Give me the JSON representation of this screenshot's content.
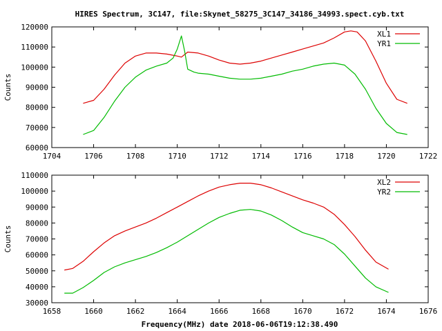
{
  "title": "HIRES Spectrum, 3C147, file:Skynet_58275_3C147_34186_34993.spect.cyb.txt",
  "xlabel": "Frequency(MHz) date 2018-06-06T19:12:38.490",
  "chart_data": [
    {
      "type": "line",
      "ylabel": "Counts",
      "xlim": [
        1704,
        1722
      ],
      "ylim": [
        60000,
        120000
      ],
      "xticks": [
        1704,
        1706,
        1708,
        1710,
        1712,
        1714,
        1716,
        1718,
        1720,
        1722
      ],
      "yticks": [
        60000,
        70000,
        80000,
        90000,
        100000,
        110000,
        120000
      ],
      "legend_position": "top-right",
      "series": [
        {
          "name": "XL1",
          "color": "#dd0000",
          "x": [
            1705.5,
            1706.0,
            1706.5,
            1707.0,
            1707.5,
            1708.0,
            1708.5,
            1709.0,
            1709.5,
            1710.0,
            1710.2,
            1710.5,
            1711.0,
            1711.5,
            1712.0,
            1712.5,
            1713.0,
            1713.5,
            1714.0,
            1714.5,
            1715.0,
            1715.5,
            1716.0,
            1716.5,
            1717.0,
            1717.5,
            1718.0,
            1718.3,
            1718.6,
            1719.0,
            1719.5,
            1720.0,
            1720.5,
            1721.0
          ],
          "y": [
            82000,
            83500,
            89000,
            96000,
            102000,
            105500,
            107000,
            107000,
            106500,
            105500,
            105000,
            107500,
            107000,
            105500,
            103500,
            102000,
            101500,
            102000,
            103000,
            104500,
            106000,
            107500,
            109000,
            110500,
            112000,
            114500,
            117500,
            118000,
            117500,
            113000,
            103000,
            92000,
            84000,
            82000
          ]
        },
        {
          "name": "YR1",
          "color": "#00bb00",
          "x": [
            1705.5,
            1706.0,
            1706.5,
            1707.0,
            1707.5,
            1708.0,
            1708.5,
            1709.0,
            1709.5,
            1709.8,
            1710.0,
            1710.2,
            1710.35,
            1710.5,
            1710.8,
            1711.0,
            1711.5,
            1712.0,
            1712.5,
            1713.0,
            1713.5,
            1714.0,
            1714.5,
            1715.0,
            1715.5,
            1716.0,
            1716.5,
            1717.0,
            1717.5,
            1718.0,
            1718.5,
            1719.0,
            1719.5,
            1720.0,
            1720.5,
            1721.0
          ],
          "y": [
            66500,
            68500,
            75000,
            83000,
            90000,
            95000,
            98500,
            100500,
            102000,
            104500,
            109000,
            115500,
            108000,
            99000,
            97500,
            97000,
            96500,
            95500,
            94500,
            94000,
            94000,
            94500,
            95500,
            96500,
            98000,
            99000,
            100500,
            101500,
            102000,
            101000,
            96500,
            89000,
            79500,
            72000,
            67500,
            66500
          ]
        }
      ]
    },
    {
      "type": "line",
      "ylabel": "Counts",
      "xlim": [
        1658,
        1676
      ],
      "ylim": [
        30000,
        110000
      ],
      "xticks": [
        1658,
        1660,
        1662,
        1664,
        1666,
        1668,
        1670,
        1672,
        1674,
        1676
      ],
      "yticks": [
        30000,
        40000,
        50000,
        60000,
        70000,
        80000,
        90000,
        100000,
        110000
      ],
      "legend_position": "top-right",
      "series": [
        {
          "name": "XL2",
          "color": "#dd0000",
          "x": [
            1658.6,
            1659.0,
            1659.5,
            1660.0,
            1660.5,
            1661.0,
            1661.5,
            1662.0,
            1662.5,
            1663.0,
            1663.5,
            1664.0,
            1664.5,
            1665.0,
            1665.5,
            1666.0,
            1666.5,
            1667.0,
            1667.5,
            1668.0,
            1668.5,
            1669.0,
            1669.5,
            1670.0,
            1670.5,
            1671.0,
            1671.5,
            1672.0,
            1672.5,
            1673.0,
            1673.5,
            1674.1
          ],
          "y": [
            50500,
            51500,
            56000,
            62000,
            67500,
            72000,
            75000,
            77500,
            80000,
            83000,
            86500,
            90000,
            93500,
            97000,
            100000,
            102500,
            104000,
            105000,
            105000,
            104000,
            102000,
            99500,
            97000,
            94500,
            92500,
            90000,
            85500,
            79000,
            71500,
            63000,
            55500,
            51000
          ]
        },
        {
          "name": "YR2",
          "color": "#00bb00",
          "x": [
            1658.6,
            1659.0,
            1659.5,
            1660.0,
            1660.5,
            1661.0,
            1661.5,
            1662.0,
            1662.5,
            1663.0,
            1663.5,
            1664.0,
            1664.5,
            1665.0,
            1665.5,
            1666.0,
            1666.5,
            1667.0,
            1667.5,
            1668.0,
            1668.5,
            1669.0,
            1669.5,
            1670.0,
            1670.5,
            1671.0,
            1671.5,
            1672.0,
            1672.5,
            1673.0,
            1673.5,
            1674.1
          ],
          "y": [
            36000,
            36000,
            39500,
            44000,
            49000,
            52500,
            55000,
            57000,
            59000,
            61500,
            64500,
            68000,
            72000,
            76000,
            80000,
            83500,
            86000,
            88000,
            88500,
            87500,
            85000,
            81500,
            77500,
            74000,
            72000,
            70000,
            66500,
            60500,
            53000,
            45500,
            40000,
            36500
          ]
        }
      ]
    }
  ]
}
